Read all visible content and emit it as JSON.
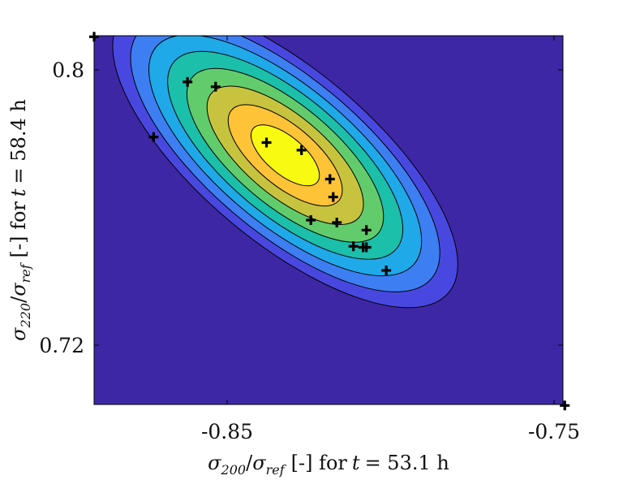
{
  "chart_data": {
    "type": "contour",
    "xlabel": {
      "symbol": "σ",
      "sub_num": "200",
      "sub_den": "ref",
      "unit": "[-] for",
      "var": "t",
      "eq": "= 53.1 h"
    },
    "ylabel": {
      "symbol": "σ",
      "sub_num": "220",
      "sub_den": "ref",
      "unit": "[-] for",
      "var": "t",
      "eq": "= 58.4 h"
    },
    "xticks": [
      "-0.85",
      "-0.75"
    ],
    "yticks": [
      "0.8",
      "0.72"
    ],
    "xlim": [
      -0.88,
      -0.75
    ],
    "ylim": [
      0.703,
      0.81
    ],
    "grid": false,
    "contour_levels": 8,
    "colors": {
      "levels": [
        "#3e27a5",
        "#4848e0",
        "#3d7ff2",
        "#1fa9e8",
        "#1bbfaa",
        "#62cc6c",
        "#c7c33f",
        "#fec336",
        "#f8fa12"
      ],
      "marker": "#000000",
      "frame": "#000000"
    },
    "center": {
      "x": -0.827,
      "y": 0.7753
    },
    "points": [
      {
        "x": -0.88,
        "y": 0.8097
      },
      {
        "x": -0.8541,
        "y": 0.7966
      },
      {
        "x": -0.8463,
        "y": 0.7952
      },
      {
        "x": -0.8635,
        "y": 0.7806
      },
      {
        "x": -0.8322,
        "y": 0.779
      },
      {
        "x": -0.8225,
        "y": 0.7768
      },
      {
        "x": -0.8146,
        "y": 0.7684
      },
      {
        "x": -0.8137,
        "y": 0.7632
      },
      {
        "x": -0.8127,
        "y": 0.7558
      },
      {
        "x": -0.8199,
        "y": 0.7565
      },
      {
        "x": -0.8045,
        "y": 0.7536
      },
      {
        "x": -0.8081,
        "y": 0.7489
      },
      {
        "x": -0.8045,
        "y": 0.7486
      },
      {
        "x": -0.8054,
        "y": 0.7486
      },
      {
        "x": -0.799,
        "y": 0.7419
      },
      {
        "x": -0.7495,
        "y": 0.7027
      }
    ]
  }
}
